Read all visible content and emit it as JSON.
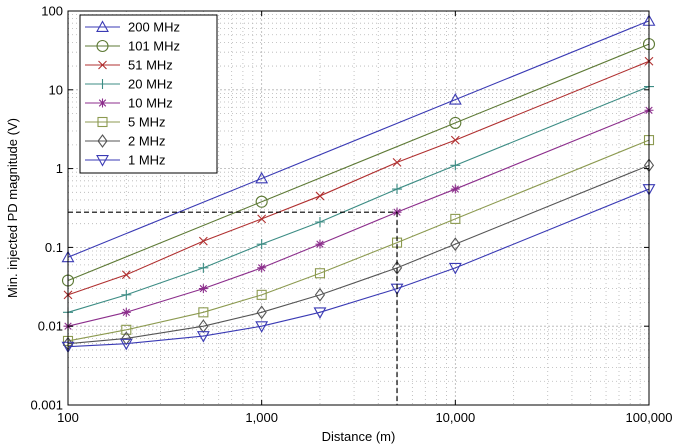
{
  "chart_data": {
    "type": "line",
    "title": "",
    "xlabel": "Distance (m)",
    "ylabel": "Min. injected PD magnitude (V)",
    "xscale": "log",
    "yscale": "log",
    "xlim": [
      100,
      100000
    ],
    "ylim": [
      0.001,
      100
    ],
    "xticks": [
      100,
      1000,
      10000,
      100000
    ],
    "xticklabels": [
      "100",
      "1,000",
      "10,000",
      "100,000"
    ],
    "yticks": [
      0.001,
      0.01,
      0.1,
      1,
      10,
      100
    ],
    "yticklabels": [
      "0.001",
      "0.01",
      "0.1",
      "1",
      "10",
      "100"
    ],
    "grid": true,
    "legend_position": "top-left",
    "series": [
      {
        "name": "200 MHz",
        "color": "#3a3ab4",
        "marker": "triangle-up",
        "x": [
          100,
          1000,
          10000,
          100000
        ],
        "y": [
          0.075,
          0.75,
          7.5,
          75
        ]
      },
      {
        "name": "101 MHz",
        "color": "#5e7a36",
        "marker": "circle",
        "x": [
          100,
          1000,
          10000,
          100000
        ],
        "y": [
          0.038,
          0.38,
          3.8,
          38
        ]
      },
      {
        "name": "51 MHz",
        "color": "#b03030",
        "marker": "x",
        "x": [
          100,
          200,
          500,
          1000,
          2000,
          5000,
          10000,
          100000
        ],
        "y": [
          0.025,
          0.045,
          0.12,
          0.23,
          0.45,
          1.2,
          2.3,
          23
        ]
      },
      {
        "name": "20 MHz",
        "color": "#3c8c84",
        "marker": "plus",
        "x": [
          100,
          200,
          500,
          1000,
          2000,
          5000,
          10000,
          100000
        ],
        "y": [
          0.015,
          0.025,
          0.055,
          0.11,
          0.21,
          0.55,
          1.1,
          11
        ]
      },
      {
        "name": "10 MHz",
        "color": "#8c2e8c",
        "marker": "star",
        "x": [
          100,
          200,
          500,
          1000,
          2000,
          5000,
          10000,
          100000
        ],
        "y": [
          0.01,
          0.015,
          0.03,
          0.055,
          0.11,
          0.28,
          0.55,
          5.5
        ]
      },
      {
        "name": "5 MHz",
        "color": "#8c9a50",
        "marker": "square",
        "x": [
          100,
          200,
          500,
          1000,
          2000,
          5000,
          10000,
          100000
        ],
        "y": [
          0.0065,
          0.009,
          0.015,
          0.025,
          0.047,
          0.115,
          0.23,
          2.3
        ]
      },
      {
        "name": "2 MHz",
        "color": "#555555",
        "marker": "diamond",
        "x": [
          100,
          200,
          500,
          1000,
          2000,
          5000,
          10000,
          100000
        ],
        "y": [
          0.006,
          0.007,
          0.01,
          0.015,
          0.025,
          0.055,
          0.11,
          1.1
        ]
      },
      {
        "name": "1 MHz",
        "color": "#3a3ab4",
        "marker": "triangle-down",
        "x": [
          100,
          200,
          500,
          1000,
          2000,
          5000,
          10000,
          100000
        ],
        "y": [
          0.0055,
          0.006,
          0.0075,
          0.01,
          0.015,
          0.03,
          0.055,
          0.55
        ]
      }
    ],
    "annotations": [
      {
        "type": "dashed-guide",
        "x": 5000,
        "y": 0.28,
        "from_x": 100,
        "to_y": 0.001,
        "color": "#000000"
      }
    ]
  }
}
